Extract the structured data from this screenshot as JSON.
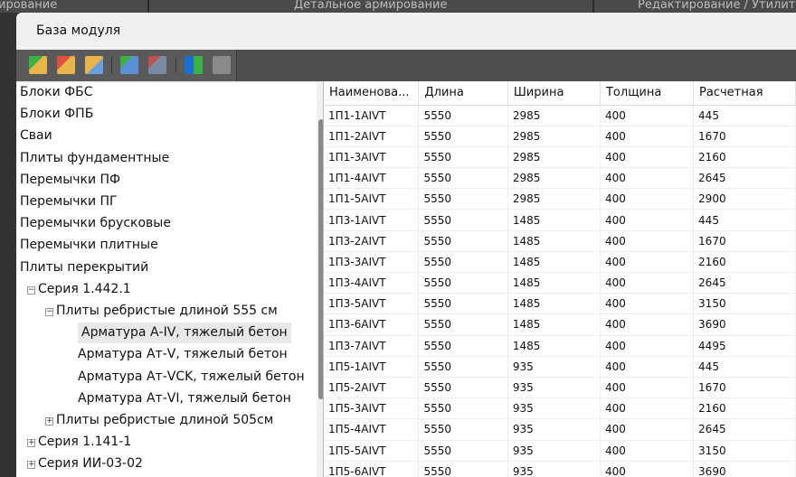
{
  "topbar": {
    "tabs": [
      "ирование",
      "Детальное армирование",
      "Редактирование / Утилит"
    ]
  },
  "dialog": {
    "title": "База модуля"
  },
  "toolbar": {
    "icons": [
      "add-folder-icon",
      "delete-folder-icon",
      "edit-folder-icon",
      "add-table-icon",
      "delete-table-icon",
      "import-icon",
      "export-document-icon"
    ]
  },
  "tree": [
    {
      "label": "Блоки ФБС",
      "level": 0
    },
    {
      "label": "Блоки ФПБ",
      "level": 0
    },
    {
      "label": "Сваи",
      "level": 0
    },
    {
      "label": "Плиты фундаментные",
      "level": 0
    },
    {
      "label": "Перемычки ПФ",
      "level": 0
    },
    {
      "label": "Перемычки ПГ",
      "level": 0
    },
    {
      "label": "Перемычки брусковые",
      "level": 0
    },
    {
      "label": "Перемычки плитные",
      "level": 0
    },
    {
      "label": "Плиты перекрытий",
      "level": 0
    },
    {
      "label": "Серия 1.442.1",
      "level": 1,
      "toggle": "−"
    },
    {
      "label": "Плиты ребристые длиной 555 см",
      "level": 2,
      "toggle": "−"
    },
    {
      "label": "Арматура А-IV, тяжелый бетон",
      "level": 3,
      "selected": true
    },
    {
      "label": "Арматура Ат-V, тяжелый бетон",
      "level": 3
    },
    {
      "label": "Арматура Ат-VCK, тяжелый бетон",
      "level": 3
    },
    {
      "label": "Арматура Ат-VI, тяжелый бетон",
      "level": 3
    },
    {
      "label": "Плиты ребристые длиной 505см",
      "level": 2,
      "toggle": "+"
    },
    {
      "label": "Серия 1.141-1",
      "level": 1,
      "toggle": "+"
    },
    {
      "label": "Серия ИИ-03-02",
      "level": 1,
      "toggle": "+"
    }
  ],
  "table": {
    "columns": [
      "Наименова...",
      "Длина",
      "Ширина",
      "Толщина",
      "Расчетная"
    ],
    "rows": [
      [
        "1П1-1AIVT",
        "5550",
        "2985",
        "400",
        "445"
      ],
      [
        "1П1-2AIVT",
        "5550",
        "2985",
        "400",
        "1670"
      ],
      [
        "1П1-3AIVT",
        "5550",
        "2985",
        "400",
        "2160"
      ],
      [
        "1П1-4AIVT",
        "5550",
        "2985",
        "400",
        "2645"
      ],
      [
        "1П1-5AIVT",
        "5550",
        "2985",
        "400",
        "2900"
      ],
      [
        "1П3-1AIVT",
        "5550",
        "1485",
        "400",
        "445"
      ],
      [
        "1П3-2AIVT",
        "5550",
        "1485",
        "400",
        "1670"
      ],
      [
        "1П3-3AIVT",
        "5550",
        "1485",
        "400",
        "2160"
      ],
      [
        "1П3-4AIVT",
        "5550",
        "1485",
        "400",
        "2645"
      ],
      [
        "1П3-5AIVT",
        "5550",
        "1485",
        "400",
        "3150"
      ],
      [
        "1П3-6AIVT",
        "5550",
        "1485",
        "400",
        "3690"
      ],
      [
        "1П3-7AIVT",
        "5550",
        "1485",
        "400",
        "4495"
      ],
      [
        "1П5-1AIVT",
        "5550",
        "935",
        "400",
        "445"
      ],
      [
        "1П5-2AIVT",
        "5550",
        "935",
        "400",
        "1670"
      ],
      [
        "1П5-3AIVT",
        "5550",
        "935",
        "400",
        "2160"
      ],
      [
        "1П5-4AIVT",
        "5550",
        "935",
        "400",
        "2645"
      ],
      [
        "1П5-5AIVT",
        "5550",
        "935",
        "400",
        "3150"
      ],
      [
        "1П5-6AIVT",
        "5550",
        "935",
        "400",
        "3690"
      ]
    ]
  }
}
